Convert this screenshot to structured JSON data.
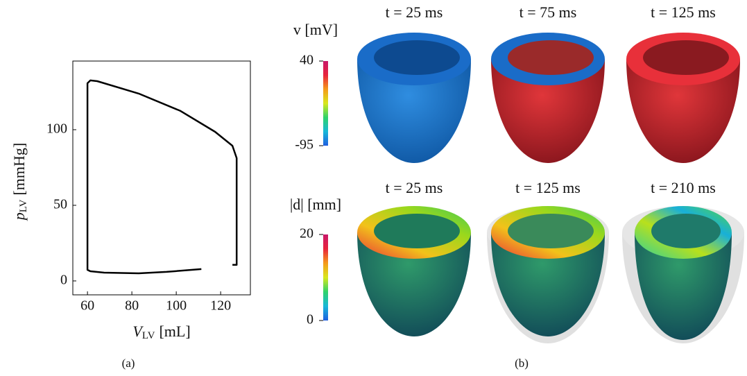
{
  "chart_data": {
    "type": "line",
    "xlabel": {
      "symbol": "V",
      "subscript": "LV",
      "unit": "[mL]"
    },
    "ylabel": {
      "symbol": "p",
      "subscript": "LV",
      "unit": "[mmHg]"
    },
    "x": [
      111.3,
      95.6,
      83.1,
      67.5,
      61.3,
      60,
      60,
      61.3,
      64.4,
      83.1,
      101.9,
      117.5,
      125.3,
      127.2,
      127.2,
      125.3
    ],
    "values": [
      7.8,
      6.0,
      5.0,
      5.5,
      6.4,
      7.3,
      130.7,
      132.6,
      132.1,
      123.9,
      112.4,
      98.6,
      89.4,
      81.2,
      10.6,
      10.6
    ],
    "color": "#000000",
    "xlim": [
      53.4,
      133.4
    ],
    "xticks": [
      60,
      80,
      100,
      120
    ],
    "ylim": [
      -9.2,
      145.4
    ],
    "yticks": [
      0,
      50,
      100
    ],
    "grid": false,
    "caption": "(a)"
  },
  "figure_b": {
    "caption": "(b)",
    "row_titles": [
      [
        "t = 25 ms",
        "t = 75 ms",
        "t = 125 ms"
      ],
      [
        "t = 25 ms",
        "t = 125 ms",
        "t = 210 ms"
      ]
    ],
    "colorbars": [
      {
        "label": "v [mV]",
        "lim": [
          -95,
          40
        ],
        "ticks": [
          -95,
          40
        ],
        "colors": [
          "#1f5fe0",
          "#18b8d8",
          "#2ed36a",
          "#d8e81c",
          "#f59a1a",
          "#e8243c",
          "#c8186a"
        ]
      },
      {
        "label": "|d| [mm]",
        "lim": [
          0,
          20
        ],
        "ticks": [
          0,
          20
        ],
        "colors": [
          "#1f5fe0",
          "#18b8d8",
          "#2ed36a",
          "#d8e81c",
          "#f59a1a",
          "#e8243c",
          "#c8186a"
        ]
      }
    ]
  }
}
